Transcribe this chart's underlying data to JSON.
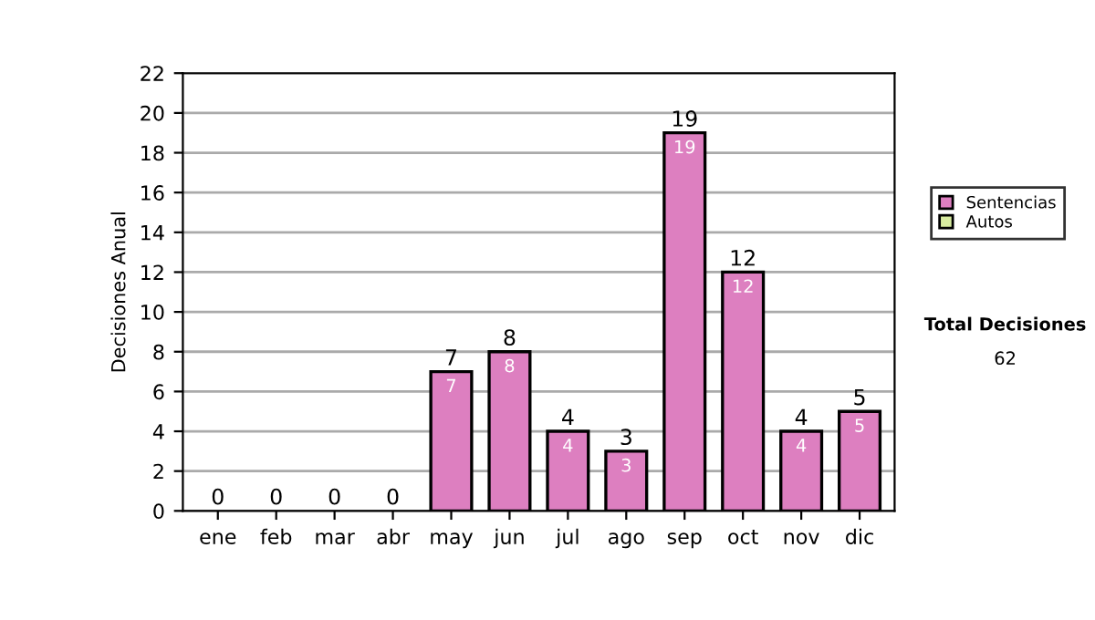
{
  "chart_data": {
    "type": "bar",
    "ylabel": "Decisiones Anual",
    "stacked": true,
    "categories": [
      "ene",
      "feb",
      "mar",
      "abr",
      "may",
      "jun",
      "jul",
      "ago",
      "sep",
      "oct",
      "nov",
      "dic"
    ],
    "series": [
      {
        "name": "Sentencias",
        "color": "#dd7fc0",
        "values": [
          0,
          0,
          0,
          0,
          7,
          8,
          4,
          3,
          19,
          12,
          4,
          5
        ],
        "value_labels": [
          null,
          null,
          null,
          null,
          "7",
          "8",
          "4",
          "3",
          "19",
          "12",
          "4",
          "5"
        ]
      },
      {
        "name": "Autos",
        "color": "#d8eca0",
        "values": [
          0,
          0,
          0,
          0,
          0,
          0,
          0,
          0,
          0,
          0,
          0,
          0
        ]
      }
    ],
    "totals": [
      "0",
      "0",
      "0",
      "0",
      "7",
      "8",
      "4",
      "3",
      "19",
      "12",
      "4",
      "5"
    ],
    "ylim": [
      0,
      22
    ],
    "yticks": [
      0,
      2,
      4,
      6,
      8,
      10,
      12,
      14,
      16,
      18,
      20,
      22
    ],
    "grid": "y",
    "legend": "right",
    "annotations": [
      "Total Decisiones",
      "62"
    ]
  }
}
